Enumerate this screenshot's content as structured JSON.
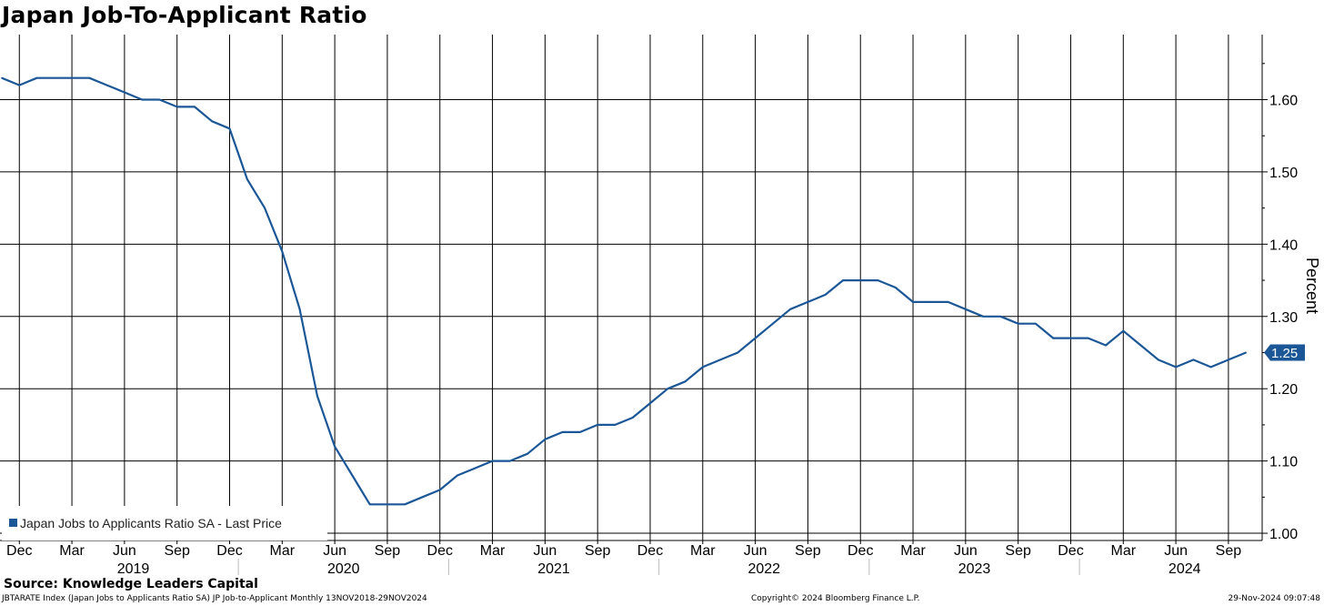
{
  "title": "Japan Job-To-Applicant Ratio",
  "source": "Source:  Knowledge Leaders Capital",
  "footer": {
    "left": "JBTARATE Index (Japan Jobs to Applicants Ratio SA) JP Job-to-Applicant  Monthly 13NOV2018-29NOV2024",
    "middle": "Copyright© 2024 Bloomberg Finance L.P.",
    "right": "29-Nov-2024 09:07:48"
  },
  "colors": {
    "series": "#1b5797",
    "grid": "#000000",
    "background": "#ffffff"
  },
  "chart_data": {
    "type": "line",
    "ylabel": "Percent",
    "ylim": [
      0.99,
      1.69
    ],
    "y_ticks": [
      "1.00",
      "1.10",
      "1.20",
      "1.30",
      "1.40",
      "1.50",
      "1.60"
    ],
    "x_start": "2018-11",
    "x_end": "2024-11",
    "x_ticks": [
      "Dec",
      "Mar",
      "Jun",
      "Sep",
      "Dec",
      "Mar",
      "Jun",
      "Sep",
      "Dec",
      "Mar",
      "Jun",
      "Sep",
      "Dec",
      "Mar",
      "Jun",
      "Sep",
      "Dec",
      "Mar",
      "Jun",
      "Sep",
      "Dec",
      "Mar",
      "Jun",
      "Sep"
    ],
    "x_tick_dates": [
      "2018-12",
      "2019-03",
      "2019-06",
      "2019-09",
      "2019-12",
      "2020-03",
      "2020-06",
      "2020-09",
      "2020-12",
      "2021-03",
      "2021-06",
      "2021-09",
      "2021-12",
      "2022-03",
      "2022-06",
      "2022-09",
      "2022-12",
      "2023-03",
      "2023-06",
      "2023-09",
      "2023-12",
      "2024-03",
      "2024-06",
      "2024-09"
    ],
    "years": [
      "2019",
      "2020",
      "2021",
      "2022",
      "2023",
      "2024"
    ],
    "grid": true,
    "legend": {
      "placement": "bottom-left",
      "entries": [
        "Japan Jobs to Applicants Ratio SA - Last Price"
      ]
    },
    "last_value_label": "1.25",
    "series": [
      {
        "name": "Japan Jobs to Applicants Ratio SA - Last Price",
        "x": [
          "2018-11",
          "2018-12",
          "2019-01",
          "2019-02",
          "2019-03",
          "2019-04",
          "2019-05",
          "2019-06",
          "2019-07",
          "2019-08",
          "2019-09",
          "2019-10",
          "2019-11",
          "2019-12",
          "2020-01",
          "2020-02",
          "2020-03",
          "2020-04",
          "2020-05",
          "2020-06",
          "2020-07",
          "2020-08",
          "2020-09",
          "2020-10",
          "2020-11",
          "2020-12",
          "2021-01",
          "2021-02",
          "2021-03",
          "2021-04",
          "2021-05",
          "2021-06",
          "2021-07",
          "2021-08",
          "2021-09",
          "2021-10",
          "2021-11",
          "2021-12",
          "2022-01",
          "2022-02",
          "2022-03",
          "2022-04",
          "2022-05",
          "2022-06",
          "2022-07",
          "2022-08",
          "2022-09",
          "2022-10",
          "2022-11",
          "2022-12",
          "2023-01",
          "2023-02",
          "2023-03",
          "2023-04",
          "2023-05",
          "2023-06",
          "2023-07",
          "2023-08",
          "2023-09",
          "2023-10",
          "2023-11",
          "2023-12",
          "2024-01",
          "2024-02",
          "2024-03",
          "2024-04",
          "2024-05",
          "2024-06",
          "2024-07",
          "2024-08",
          "2024-09",
          "2024-10"
        ],
        "values": [
          1.63,
          1.62,
          1.63,
          1.63,
          1.63,
          1.63,
          1.62,
          1.61,
          1.6,
          1.6,
          1.59,
          1.59,
          1.57,
          1.56,
          1.49,
          1.45,
          1.39,
          1.31,
          1.19,
          1.12,
          1.08,
          1.04,
          1.04,
          1.04,
          1.05,
          1.06,
          1.08,
          1.09,
          1.1,
          1.1,
          1.11,
          1.13,
          1.14,
          1.14,
          1.15,
          1.15,
          1.16,
          1.18,
          1.2,
          1.21,
          1.23,
          1.24,
          1.25,
          1.27,
          1.29,
          1.31,
          1.32,
          1.33,
          1.35,
          1.35,
          1.35,
          1.34,
          1.32,
          1.32,
          1.32,
          1.31,
          1.3,
          1.3,
          1.29,
          1.29,
          1.27,
          1.27,
          1.27,
          1.26,
          1.28,
          1.26,
          1.24,
          1.23,
          1.24,
          1.23,
          1.24,
          1.25
        ]
      }
    ]
  }
}
